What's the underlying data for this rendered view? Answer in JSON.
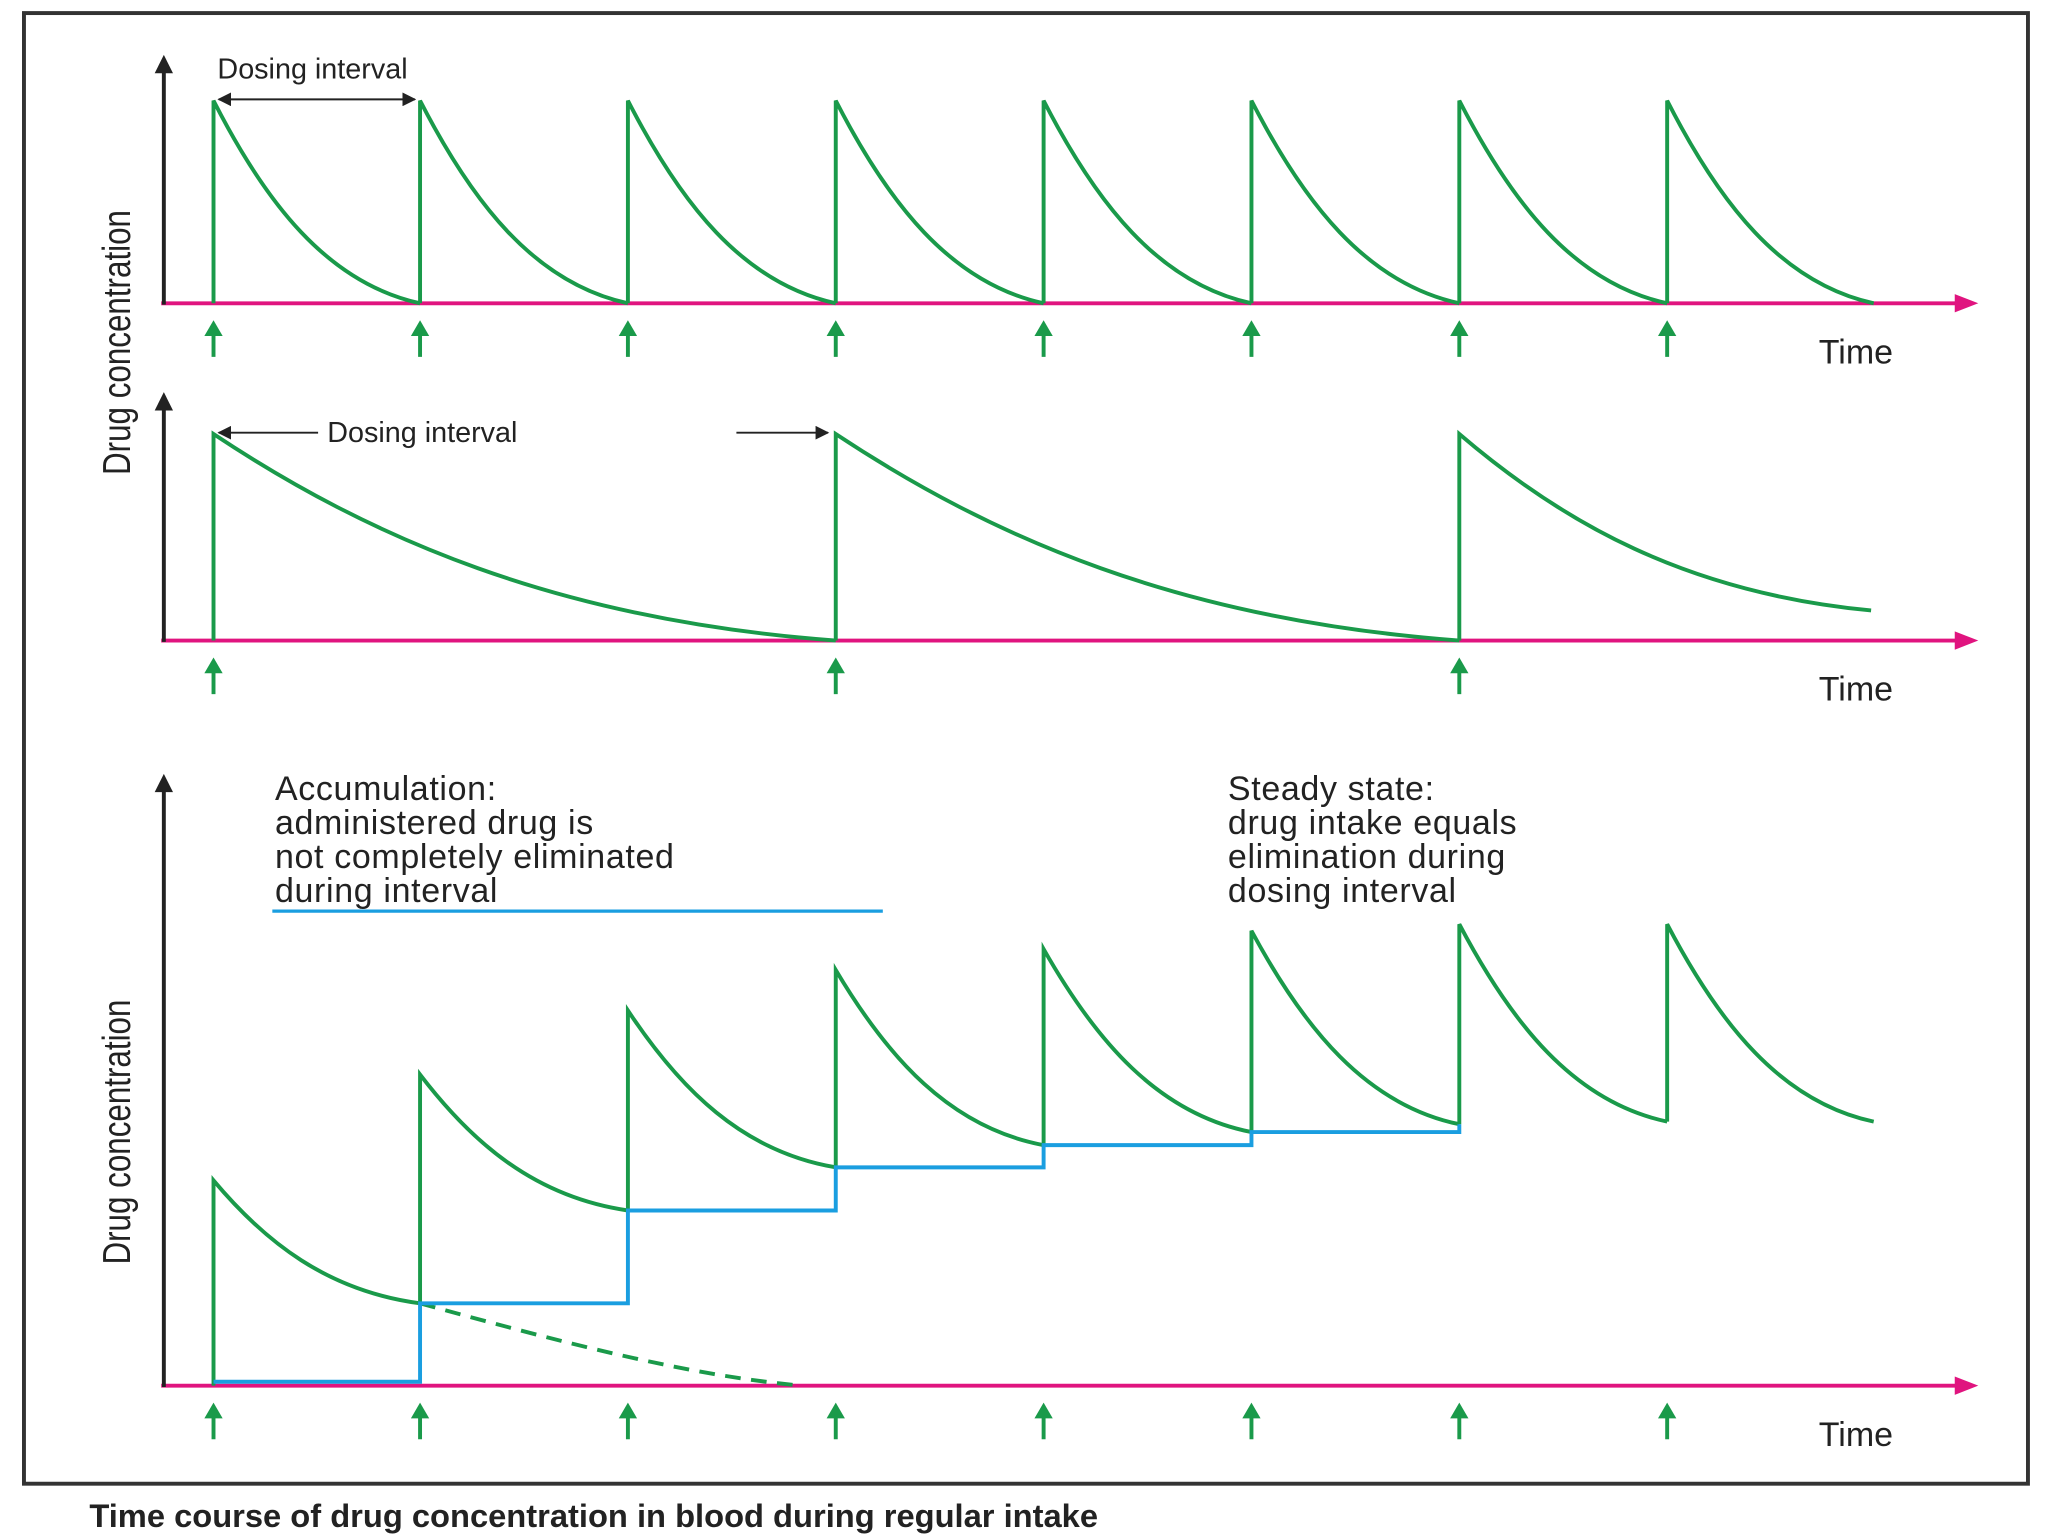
{
  "panels": [
    {
      "interval_label": "Dosing interval",
      "x_label": "Time"
    },
    {
      "interval_label": "Dosing interval",
      "x_label": "Time"
    },
    {
      "x_label": "Time",
      "annotations": [
        {
          "lines": [
            "Accumulation:",
            "administered drug is",
            "not completely eliminated",
            "during interval"
          ]
        },
        {
          "lines": [
            "Steady state:",
            "drug intake equals",
            "elimination during",
            "dosing interval"
          ]
        }
      ]
    }
  ],
  "y_labels": [
    "Drug concentration",
    "Drug concentration"
  ],
  "caption": "Time course of drug concentration in blood during regular intake"
}
